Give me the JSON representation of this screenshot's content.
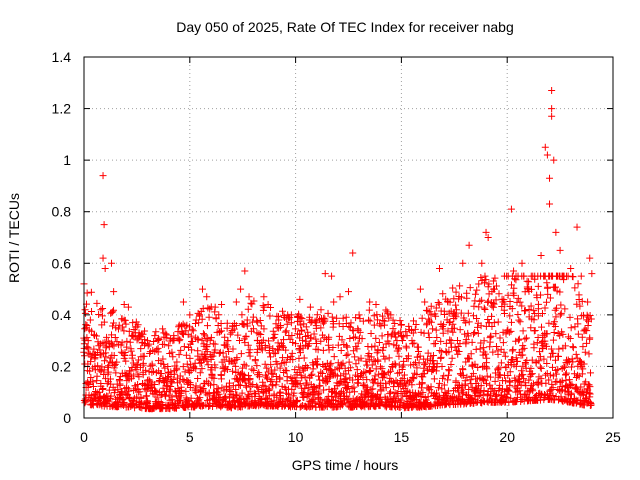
{
  "chart_data": {
    "type": "scatter",
    "title": "Day 050 of 2025, Rate Of TEC Index for receiver nabg",
    "xlabel": "GPS time / hours",
    "ylabel": "ROTI / TECUs",
    "xlim": [
      0,
      25
    ],
    "ylim": [
      0,
      1.4
    ],
    "xticks": [
      "0",
      "5",
      "10",
      "15",
      "20",
      "25"
    ],
    "yticks": [
      "0",
      "0.2",
      "0.4",
      "0.6",
      "0.8",
      "1",
      "1.2",
      "1.4"
    ],
    "grid": true,
    "marker": "plus",
    "color": "#ff0000",
    "series": [
      {
        "points": [
          [
            0.0,
            0.52
          ],
          [
            0.05,
            0.42
          ],
          [
            0.1,
            0.35
          ],
          [
            0.2,
            0.3
          ],
          [
            0.3,
            0.38
          ],
          [
            0.5,
            0.32
          ],
          [
            0.7,
            0.28
          ],
          [
            0.8,
            0.42
          ],
          [
            0.9,
            0.94
          ],
          [
            0.95,
            0.75
          ],
          [
            0.9,
            0.62
          ],
          [
            1.0,
            0.58
          ],
          [
            1.3,
            0.6
          ],
          [
            1.4,
            0.49
          ],
          [
            1.5,
            0.35
          ],
          [
            1.9,
            0.44
          ],
          [
            2.1,
            0.43
          ],
          [
            2.3,
            0.37
          ],
          [
            2.6,
            0.33
          ],
          [
            3.0,
            0.3
          ],
          [
            3.1,
            0.25
          ],
          [
            3.5,
            0.27
          ],
          [
            4.0,
            0.28
          ],
          [
            4.5,
            0.36
          ],
          [
            4.7,
            0.45
          ],
          [
            5.0,
            0.4
          ],
          [
            5.3,
            0.38
          ],
          [
            5.6,
            0.5
          ],
          [
            5.8,
            0.47
          ],
          [
            6.2,
            0.43
          ],
          [
            6.5,
            0.44
          ],
          [
            6.8,
            0.3
          ],
          [
            7.2,
            0.45
          ],
          [
            7.4,
            0.5
          ],
          [
            7.6,
            0.57
          ],
          [
            7.8,
            0.47
          ],
          [
            8.2,
            0.3
          ],
          [
            8.5,
            0.47
          ],
          [
            8.7,
            0.44
          ],
          [
            9.2,
            0.38
          ],
          [
            9.8,
            0.4
          ],
          [
            10.2,
            0.46
          ],
          [
            10.7,
            0.43
          ],
          [
            11.0,
            0.38
          ],
          [
            11.2,
            0.42
          ],
          [
            11.4,
            0.56
          ],
          [
            11.7,
            0.55
          ],
          [
            11.8,
            0.45
          ],
          [
            12.1,
            0.47
          ],
          [
            12.5,
            0.49
          ],
          [
            12.7,
            0.64
          ],
          [
            13.0,
            0.4
          ],
          [
            13.5,
            0.45
          ],
          [
            13.8,
            0.44
          ],
          [
            14.2,
            0.36
          ],
          [
            14.5,
            0.4
          ],
          [
            15.0,
            0.32
          ],
          [
            15.5,
            0.3
          ],
          [
            15.9,
            0.5
          ],
          [
            16.1,
            0.45
          ],
          [
            16.4,
            0.4
          ],
          [
            16.8,
            0.58
          ],
          [
            17.2,
            0.45
          ],
          [
            17.6,
            0.42
          ],
          [
            17.9,
            0.6
          ],
          [
            18.2,
            0.67
          ],
          [
            18.5,
            0.48
          ],
          [
            18.8,
            0.6
          ],
          [
            19.0,
            0.72
          ],
          [
            19.1,
            0.7
          ],
          [
            19.4,
            0.5
          ],
          [
            19.8,
            0.45
          ],
          [
            20.2,
            0.81
          ],
          [
            20.3,
            0.57
          ],
          [
            20.7,
            0.6
          ],
          [
            21.0,
            0.5
          ],
          [
            21.3,
            0.55
          ],
          [
            21.6,
            0.63
          ],
          [
            21.8,
            1.05
          ],
          [
            21.9,
            1.02
          ],
          [
            22.0,
            0.93
          ],
          [
            22.0,
            0.83
          ],
          [
            22.1,
            1.27
          ],
          [
            22.1,
            1.2
          ],
          [
            22.1,
            1.17
          ],
          [
            22.2,
            1.0
          ],
          [
            22.3,
            0.72
          ],
          [
            22.5,
            0.65
          ],
          [
            22.8,
            0.55
          ],
          [
            23.0,
            0.58
          ],
          [
            23.3,
            0.74
          ],
          [
            23.5,
            0.55
          ],
          [
            23.8,
            0.45
          ],
          [
            23.9,
            0.62
          ],
          [
            24.0,
            0.56
          ]
        ],
        "baseline": {
          "step_hours": 0.05,
          "profile": [
            [
              0,
              0.18
            ],
            [
              1,
              0.15
            ],
            [
              2,
              0.14
            ],
            [
              3,
              0.12
            ],
            [
              4,
              0.12
            ],
            [
              5,
              0.14
            ],
            [
              6,
              0.15
            ],
            [
              7,
              0.13
            ],
            [
              8,
              0.16
            ],
            [
              9,
              0.15
            ],
            [
              10,
              0.14
            ],
            [
              11,
              0.14
            ],
            [
              12,
              0.14
            ],
            [
              13,
              0.14
            ],
            [
              14,
              0.15
            ],
            [
              15,
              0.13
            ],
            [
              16,
              0.14
            ],
            [
              17,
              0.17
            ],
            [
              18,
              0.18
            ],
            [
              19,
              0.2
            ],
            [
              20,
              0.2
            ],
            [
              21,
              0.22
            ],
            [
              22,
              0.24
            ],
            [
              23,
              0.2
            ],
            [
              24,
              0.15
            ]
          ]
        }
      }
    ]
  }
}
